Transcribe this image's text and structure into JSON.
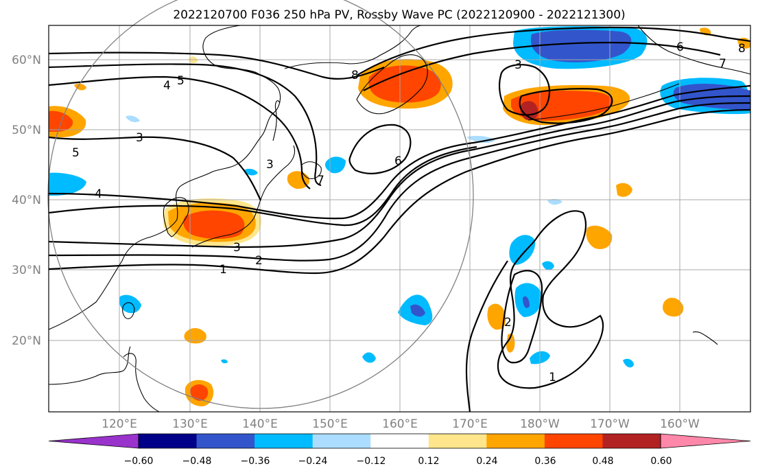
{
  "title": "2022120700 F036 250 hPa PV, Rossby Wave PC (2022120900 - 2022121300)",
  "map": {
    "lat_labels": [
      "60°N",
      "50°N",
      "40°N",
      "30°N",
      "20°N"
    ],
    "lon_labels": [
      "120°E",
      "130°E",
      "140°E",
      "150°E",
      "160°E",
      "170°E",
      "180°W",
      "170°W",
      "160°W"
    ],
    "contour_labels": [
      "1",
      "2",
      "3",
      "3",
      "3",
      "4",
      "4",
      "5",
      "5",
      "6",
      "6",
      "7",
      "8",
      "2",
      "1",
      "3",
      "7",
      "8"
    ]
  },
  "colorbar": {
    "tick_labels": [
      "−0.60",
      "−0.48",
      "−0.36",
      "−0.24",
      "−0.12",
      "0.12",
      "0.24",
      "0.36",
      "0.48",
      "0.60"
    ],
    "colors": [
      "#9933cc",
      "#000088",
      "#3355cc",
      "#00bbff",
      "#aaddff",
      "#ffffff",
      "#ffe68c",
      "#ffa500",
      "#ff4500",
      "#b22222",
      "#ff88aa"
    ]
  }
}
